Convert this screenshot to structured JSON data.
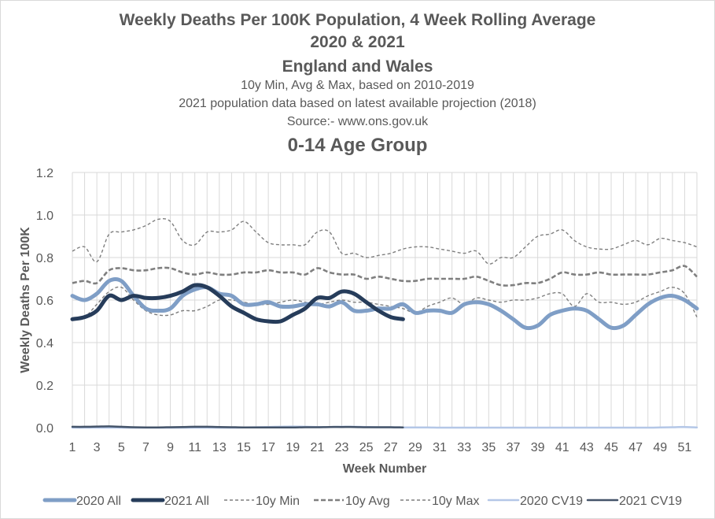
{
  "chart_data": {
    "type": "line",
    "title_lines": [
      "Weekly Deaths Per 100K Population, 4 Week Rolling Average",
      "2020 & 2021",
      "England and Wales",
      "10y Min, Avg & Max, based on 2010-2019",
      "2021 population data based on latest available projection (2018)",
      "Source:- www.ons.gov.uk",
      "0-14 Age Group"
    ],
    "xlabel": "Week Number",
    "ylabel": "Weekly Deaths Per 100K",
    "xlim": [
      1,
      52
    ],
    "ylim": [
      0,
      1.2
    ],
    "yticks": [
      "0.0",
      "0.2",
      "0.4",
      "0.6",
      "0.8",
      "1.0",
      "1.2"
    ],
    "xticks": [
      "1",
      "3",
      "5",
      "7",
      "9",
      "11",
      "13",
      "15",
      "17",
      "19",
      "21",
      "23",
      "25",
      "27",
      "29",
      "31",
      "33",
      "35",
      "37",
      "39",
      "41",
      "43",
      "45",
      "47",
      "49",
      "51"
    ],
    "grid": true,
    "legend_position": "bottom",
    "series": [
      {
        "name": "2020 All",
        "color": "#7f9ec6",
        "style": "thick",
        "x_start": 1,
        "values": [
          0.62,
          0.6,
          0.63,
          0.69,
          0.69,
          0.62,
          0.56,
          0.55,
          0.56,
          0.62,
          0.65,
          0.66,
          0.63,
          0.62,
          0.58,
          0.58,
          0.59,
          0.57,
          0.57,
          0.58,
          0.58,
          0.57,
          0.59,
          0.55,
          0.55,
          0.56,
          0.56,
          0.58,
          0.54,
          0.55,
          0.55,
          0.54,
          0.58,
          0.59,
          0.58,
          0.55,
          0.51,
          0.47,
          0.48,
          0.53,
          0.55,
          0.56,
          0.55,
          0.51,
          0.47,
          0.48,
          0.53,
          0.58,
          0.61,
          0.62,
          0.6,
          0.56
        ]
      },
      {
        "name": "2021 All",
        "color": "#263c5a",
        "style": "thick",
        "x_start": 1,
        "values": [
          0.51,
          0.52,
          0.55,
          0.62,
          0.6,
          0.62,
          0.61,
          0.61,
          0.62,
          0.64,
          0.67,
          0.66,
          0.62,
          0.57,
          0.54,
          0.51,
          0.5,
          0.5,
          0.53,
          0.56,
          0.61,
          0.61,
          0.64,
          0.63,
          0.59,
          0.55,
          0.52,
          0.51
        ]
      },
      {
        "name": "10y Min",
        "color": "#7f7f7f",
        "style": "dash-fine",
        "x_start": 1,
        "values": [
          0.51,
          0.52,
          0.58,
          0.64,
          0.66,
          0.6,
          0.55,
          0.53,
          0.53,
          0.55,
          0.55,
          0.57,
          0.6,
          0.6,
          0.59,
          0.58,
          0.58,
          0.59,
          0.6,
          0.59,
          0.58,
          0.59,
          0.6,
          0.59,
          0.59,
          0.58,
          0.57,
          0.56,
          0.54,
          0.57,
          0.59,
          0.61,
          0.58,
          0.61,
          0.6,
          0.59,
          0.6,
          0.6,
          0.61,
          0.63,
          0.63,
          0.57,
          0.63,
          0.59,
          0.59,
          0.58,
          0.59,
          0.62,
          0.64,
          0.66,
          0.63,
          0.52
        ]
      },
      {
        "name": "10y Avg",
        "color": "#7f7f7f",
        "style": "dash-thick",
        "x_start": 1,
        "values": [
          0.68,
          0.69,
          0.68,
          0.74,
          0.75,
          0.74,
          0.74,
          0.75,
          0.75,
          0.73,
          0.72,
          0.73,
          0.72,
          0.72,
          0.73,
          0.73,
          0.74,
          0.73,
          0.73,
          0.72,
          0.75,
          0.73,
          0.72,
          0.72,
          0.7,
          0.71,
          0.7,
          0.69,
          0.69,
          0.7,
          0.7,
          0.7,
          0.7,
          0.71,
          0.69,
          0.67,
          0.67,
          0.68,
          0.68,
          0.7,
          0.73,
          0.72,
          0.72,
          0.73,
          0.72,
          0.72,
          0.72,
          0.72,
          0.73,
          0.74,
          0.76,
          0.71
        ]
      },
      {
        "name": "10y Max",
        "color": "#7f7f7f",
        "style": "dash-fine",
        "x_start": 1,
        "values": [
          0.83,
          0.85,
          0.78,
          0.91,
          0.92,
          0.93,
          0.95,
          0.98,
          0.97,
          0.88,
          0.86,
          0.92,
          0.92,
          0.93,
          0.97,
          0.92,
          0.87,
          0.86,
          0.86,
          0.86,
          0.92,
          0.92,
          0.82,
          0.82,
          0.8,
          0.81,
          0.82,
          0.84,
          0.85,
          0.85,
          0.84,
          0.83,
          0.82,
          0.83,
          0.77,
          0.8,
          0.8,
          0.85,
          0.9,
          0.91,
          0.93,
          0.88,
          0.85,
          0.84,
          0.84,
          0.86,
          0.88,
          0.86,
          0.89,
          0.88,
          0.87,
          0.85
        ]
      },
      {
        "name": "2020 CV19",
        "color": "#b4c7e7",
        "style": "thin",
        "x_start": 1,
        "values": [
          0,
          0,
          0,
          0,
          0,
          0,
          0,
          0,
          0,
          0,
          0,
          0,
          0,
          0,
          0.001,
          0.002,
          0.003,
          0.004,
          0.005,
          0.004,
          0.003,
          0.003,
          0.004,
          0.004,
          0.003,
          0.002,
          0.002,
          0.001,
          0.001,
          0.001,
          0,
          0,
          0,
          0,
          0,
          0,
          0,
          0,
          0,
          0,
          0,
          0,
          0,
          0,
          0,
          0,
          0,
          0,
          0.001,
          0.002,
          0.003,
          0.001
        ]
      },
      {
        "name": "2021 CV19",
        "color": "#44546a",
        "style": "thin",
        "x_start": 1,
        "values": [
          0.004,
          0.004,
          0.005,
          0.006,
          0.004,
          0.002,
          0.001,
          0.001,
          0.002,
          0.003,
          0.004,
          0.004,
          0.003,
          0.002,
          0.001,
          0.001,
          0.001,
          0.001,
          0.001,
          0.002,
          0.002,
          0.003,
          0.003,
          0.003,
          0.002,
          0.002,
          0.002,
          0.001
        ]
      }
    ]
  }
}
